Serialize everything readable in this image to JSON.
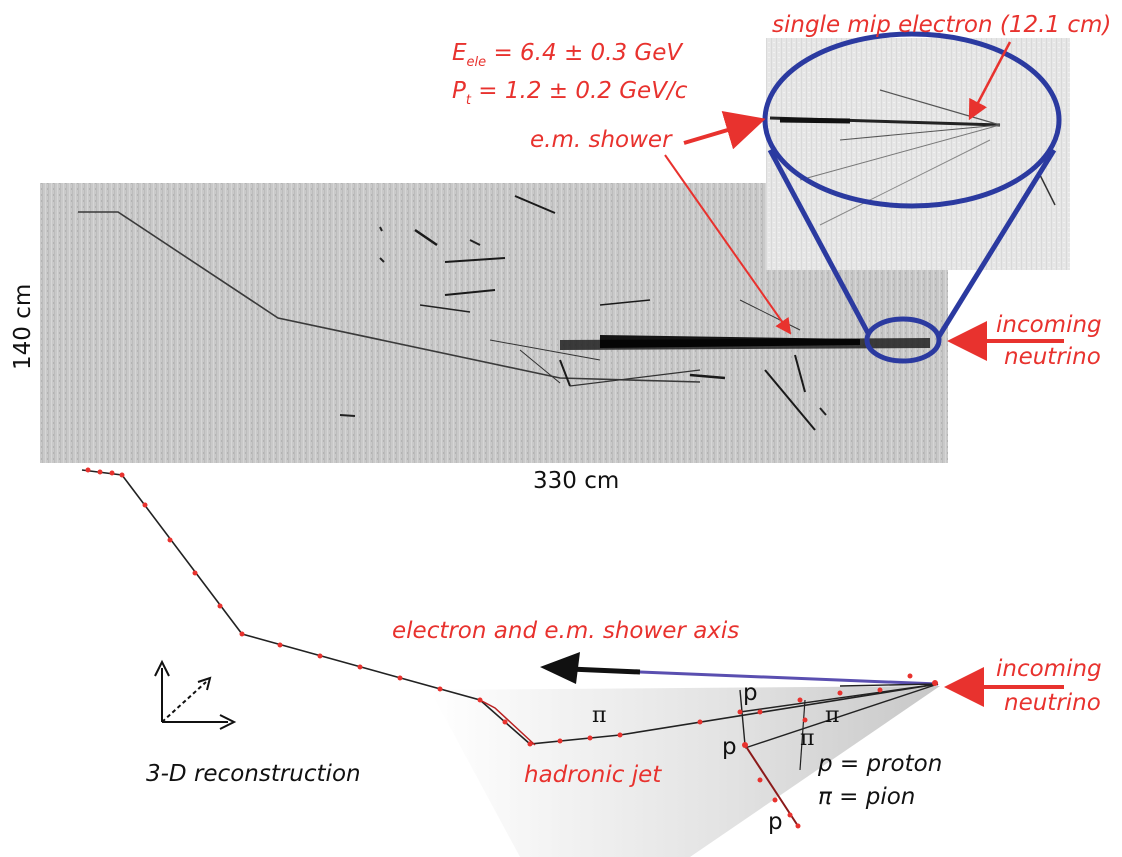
{
  "labels": {
    "energy_line": "E",
    "energy_sub": "ele",
    "energy_value": " = 6.4 ± 0.3 GeV",
    "pt_line": "P",
    "pt_sub": "t",
    "pt_value": " = 1.2 ± 0.2 GeV/c",
    "single_mip": "single mip electron (12.1 cm)",
    "em_shower": "e.m. shower",
    "incoming_1": "incoming",
    "neutrino_1": "neutrino",
    "height_scale": "140 cm",
    "width_scale": "330 cm",
    "shower_axis": "electron and e.m. shower axis",
    "incoming_2": "incoming",
    "neutrino_2": "neutrino",
    "reconstruction": "3-D reconstruction",
    "hadronic_jet": "hadronic jet",
    "legend_p": "p = proton",
    "legend_pi": "π = pion"
  },
  "particles": {
    "pi_1": "π",
    "pi_2": "π",
    "pi_3": "π",
    "p_1": "p",
    "p_2": "p",
    "p_3": "p"
  },
  "colors": {
    "annotation": "#e8322e",
    "loop": "#2b3aa0",
    "text": "#111111"
  }
}
